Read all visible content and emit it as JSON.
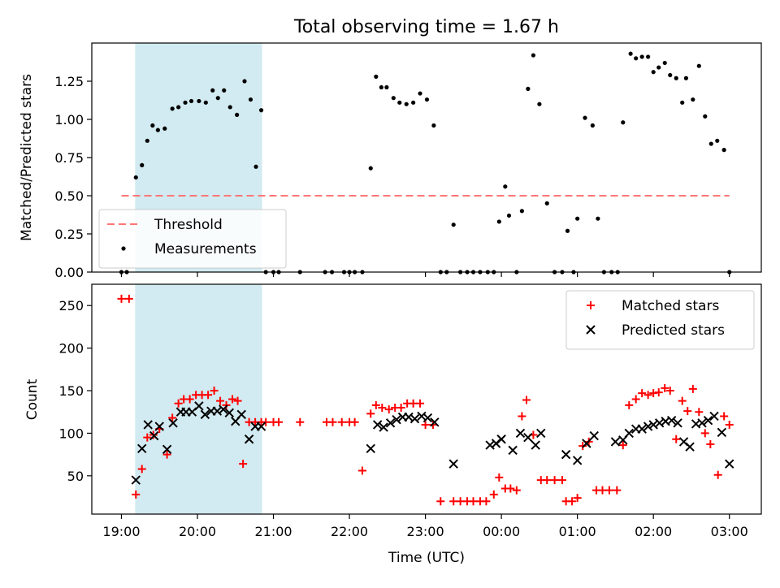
{
  "title": "Total observing time = 1.67 h",
  "chart_data": [
    {
      "type": "scatter",
      "ylabel": "Matched/Predicted stars",
      "xlabel": "",
      "ylim": [
        0,
        1.5
      ],
      "yticks": [
        "0.00",
        "0.25",
        "0.50",
        "0.75",
        "1.00",
        "1.25"
      ],
      "yticks_values": [
        0,
        0.25,
        0.5,
        0.75,
        1.0,
        1.25
      ],
      "xlim_hours": [
        18.61,
        27.42
      ],
      "xticks_values": [
        19,
        20,
        21,
        22,
        23,
        24,
        25,
        26,
        27
      ],
      "highlight_span": [
        19.18,
        20.85
      ],
      "threshold": {
        "name": "Threshold",
        "value": 0.5,
        "x_from": 19.0,
        "x_to": 27.0,
        "color": "#ff7777"
      },
      "legend": {
        "position": "lower-left",
        "entries": [
          "Threshold",
          "Measurements"
        ]
      },
      "series": [
        {
          "name": "Measurements",
          "color": "#000000",
          "x": [
            19.0,
            19.07,
            19.19,
            19.27,
            19.34,
            19.41,
            19.48,
            19.57,
            19.67,
            19.75,
            19.84,
            19.92,
            20.02,
            20.11,
            20.2,
            20.27,
            20.35,
            20.43,
            20.52,
            20.62,
            20.7,
            20.77,
            20.84,
            20.9,
            21.0,
            21.07,
            21.35,
            21.68,
            21.77,
            21.93,
            22.0,
            22.07,
            22.17,
            22.28,
            22.35,
            22.42,
            22.49,
            22.58,
            22.66,
            22.75,
            22.84,
            22.93,
            23.02,
            23.11,
            23.2,
            23.28,
            23.37,
            23.46,
            23.55,
            23.63,
            23.72,
            23.82,
            23.9,
            23.97,
            24.05,
            24.1,
            24.2,
            24.27,
            24.35,
            24.42,
            24.5,
            24.6,
            24.7,
            24.8,
            24.87,
            24.95,
            25.0,
            25.1,
            25.2,
            25.27,
            25.35,
            25.45,
            25.53,
            25.6,
            25.7,
            25.77,
            25.85,
            25.93,
            26.0,
            26.07,
            26.15,
            26.22,
            26.3,
            26.38,
            26.43,
            26.52,
            26.6,
            26.68,
            26.76,
            26.84,
            26.93,
            27.0
          ],
          "y": [
            0.0,
            0.0,
            0.62,
            0.7,
            0.86,
            0.96,
            0.93,
            0.94,
            1.07,
            1.08,
            1.11,
            1.12,
            1.12,
            1.11,
            1.19,
            1.14,
            1.19,
            1.08,
            1.03,
            1.25,
            1.13,
            0.69,
            1.06,
            0.0,
            0.0,
            0.0,
            0.0,
            0.0,
            0.0,
            0.0,
            0.0,
            0.0,
            0.0,
            0.68,
            1.28,
            1.21,
            1.21,
            1.14,
            1.11,
            1.1,
            1.11,
            1.17,
            1.13,
            0.96,
            0.0,
            0.0,
            0.31,
            0.0,
            0.0,
            0.0,
            0.0,
            0.0,
            0.0,
            0.33,
            0.56,
            0.37,
            0.0,
            0.4,
            1.2,
            1.42,
            1.1,
            0.45,
            0.0,
            0.0,
            0.27,
            0.0,
            0.35,
            1.01,
            0.96,
            0.35,
            0.0,
            0.0,
            0.0,
            0.98,
            1.43,
            1.4,
            1.41,
            1.41,
            1.31,
            1.34,
            1.37,
            1.29,
            1.27,
            1.11,
            1.27,
            1.13,
            1.35,
            1.02,
            0.84,
            0.86,
            0.8,
            0.0
          ]
        }
      ]
    },
    {
      "type": "scatter",
      "ylabel": "Count",
      "xlabel": "Time (UTC)",
      "ylim": [
        5,
        275
      ],
      "yticks": [
        "50",
        "100",
        "150",
        "200",
        "250"
      ],
      "yticks_values": [
        50,
        100,
        150,
        200,
        250
      ],
      "xlim_hours": [
        18.61,
        27.42
      ],
      "xticks_values": [
        19,
        20,
        21,
        22,
        23,
        24,
        25,
        26,
        27
      ],
      "xticks": [
        "19:00",
        "20:00",
        "21:00",
        "22:00",
        "23:00",
        "00:00",
        "01:00",
        "02:00",
        "03:00"
      ],
      "highlight_span": [
        19.18,
        20.85
      ],
      "legend": {
        "position": "top-right",
        "entries": [
          "Matched stars",
          "Predicted stars"
        ]
      },
      "series": [
        {
          "name": "Matched stars",
          "color": "#ff0000",
          "marker": "+",
          "x": [
            19.0,
            19.1,
            19.19,
            19.27,
            19.34,
            19.42,
            19.5,
            19.6,
            19.67,
            19.75,
            19.82,
            19.9,
            19.98,
            20.06,
            20.14,
            20.22,
            20.3,
            20.38,
            20.46,
            20.53,
            20.6,
            20.68,
            20.76,
            20.84,
            20.9,
            21.0,
            21.07,
            21.35,
            21.7,
            21.78,
            21.9,
            22.0,
            22.07,
            22.17,
            22.28,
            22.35,
            22.43,
            22.52,
            22.6,
            22.68,
            22.76,
            22.84,
            22.93,
            23.0,
            23.1,
            23.2,
            23.37,
            23.46,
            23.55,
            23.63,
            23.72,
            23.8,
            23.9,
            23.97,
            24.05,
            24.12,
            24.2,
            24.27,
            24.33,
            24.42,
            24.52,
            24.6,
            24.7,
            24.8,
            24.85,
            24.93,
            25.0,
            25.07,
            25.15,
            25.25,
            25.33,
            25.42,
            25.52,
            25.6,
            25.68,
            25.77,
            25.85,
            25.93,
            26.0,
            26.07,
            26.15,
            26.22,
            26.3,
            26.38,
            26.45,
            26.52,
            26.6,
            26.68,
            26.75,
            26.85,
            26.93,
            27.0
          ],
          "y": [
            258,
            258,
            28,
            58,
            95,
            98,
            105,
            75,
            118,
            135,
            140,
            140,
            145,
            145,
            145,
            150,
            138,
            133,
            140,
            138,
            64,
            113,
            113,
            113,
            113,
            113,
            113,
            113,
            113,
            113,
            113,
            113,
            113,
            56,
            123,
            133,
            130,
            128,
            130,
            130,
            135,
            135,
            135,
            110,
            110,
            20,
            20,
            20,
            20,
            20,
            20,
            20,
            28,
            48,
            35,
            35,
            33,
            120,
            139,
            98,
            45,
            45,
            45,
            45,
            20,
            20,
            24,
            85,
            90,
            33,
            33,
            33,
            33,
            86,
            133,
            140,
            147,
            145,
            147,
            148,
            153,
            150,
            93,
            138,
            126,
            152,
            125,
            100,
            87,
            51,
            120,
            110
          ],
          "_note": ""
        },
        {
          "name": "Predicted stars",
          "color": "#000000",
          "marker": "x",
          "x": [
            19.19,
            19.27,
            19.35,
            19.43,
            19.5,
            19.6,
            19.68,
            19.78,
            19.85,
            19.93,
            20.02,
            20.1,
            20.18,
            20.26,
            20.34,
            20.42,
            20.5,
            20.58,
            20.68,
            20.76,
            20.84,
            22.28,
            22.37,
            22.45,
            22.54,
            22.62,
            22.7,
            22.78,
            22.86,
            22.95,
            23.03,
            23.12,
            23.37,
            23.85,
            23.93,
            24.0,
            24.15,
            24.25,
            24.35,
            24.45,
            24.52,
            24.85,
            25.0,
            25.12,
            25.22,
            25.5,
            25.6,
            25.68,
            25.77,
            25.85,
            25.93,
            26.0,
            26.08,
            26.16,
            26.24,
            26.32,
            26.4,
            26.48,
            26.56,
            26.64,
            26.72,
            26.8,
            26.9,
            27.0
          ],
          "y": [
            45,
            82,
            110,
            97,
            108,
            81,
            112,
            125,
            125,
            125,
            132,
            122,
            126,
            126,
            128,
            124,
            114,
            122,
            93,
            108,
            108,
            82,
            110,
            107,
            112,
            116,
            119,
            119,
            117,
            120,
            118,
            113,
            64,
            86,
            88,
            93,
            80,
            100,
            95,
            86,
            100,
            75,
            68,
            88,
            97,
            90,
            92,
            100,
            105,
            105,
            108,
            110,
            112,
            114,
            115,
            112,
            90,
            84,
            111,
            112,
            115,
            120,
            101,
            64
          ]
        }
      ]
    }
  ]
}
